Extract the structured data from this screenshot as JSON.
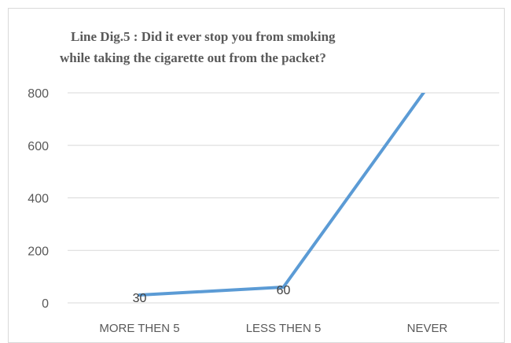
{
  "chart_data": {
    "type": "line",
    "title_lines": [
      "Line Dig.5 : Did it ever stop you from smoking",
      "while taking the cigarette out from the packet?"
    ],
    "categories": [
      "MORE THEN 5",
      "LESS THEN 5",
      "NEVER"
    ],
    "series": [
      {
        "values": [
          30,
          60,
          820
        ],
        "data_labels": [
          "30",
          "60",
          ""
        ]
      }
    ],
    "y_ticks": [
      0,
      200,
      400,
      600,
      800
    ],
    "ylim": [
      0,
      800
    ],
    "xlabel": "",
    "ylabel": "",
    "grid": true,
    "legend": "none",
    "colors": {
      "line": "#5b9bd5",
      "grid": "#d9d9d9",
      "text": "#595959"
    }
  }
}
